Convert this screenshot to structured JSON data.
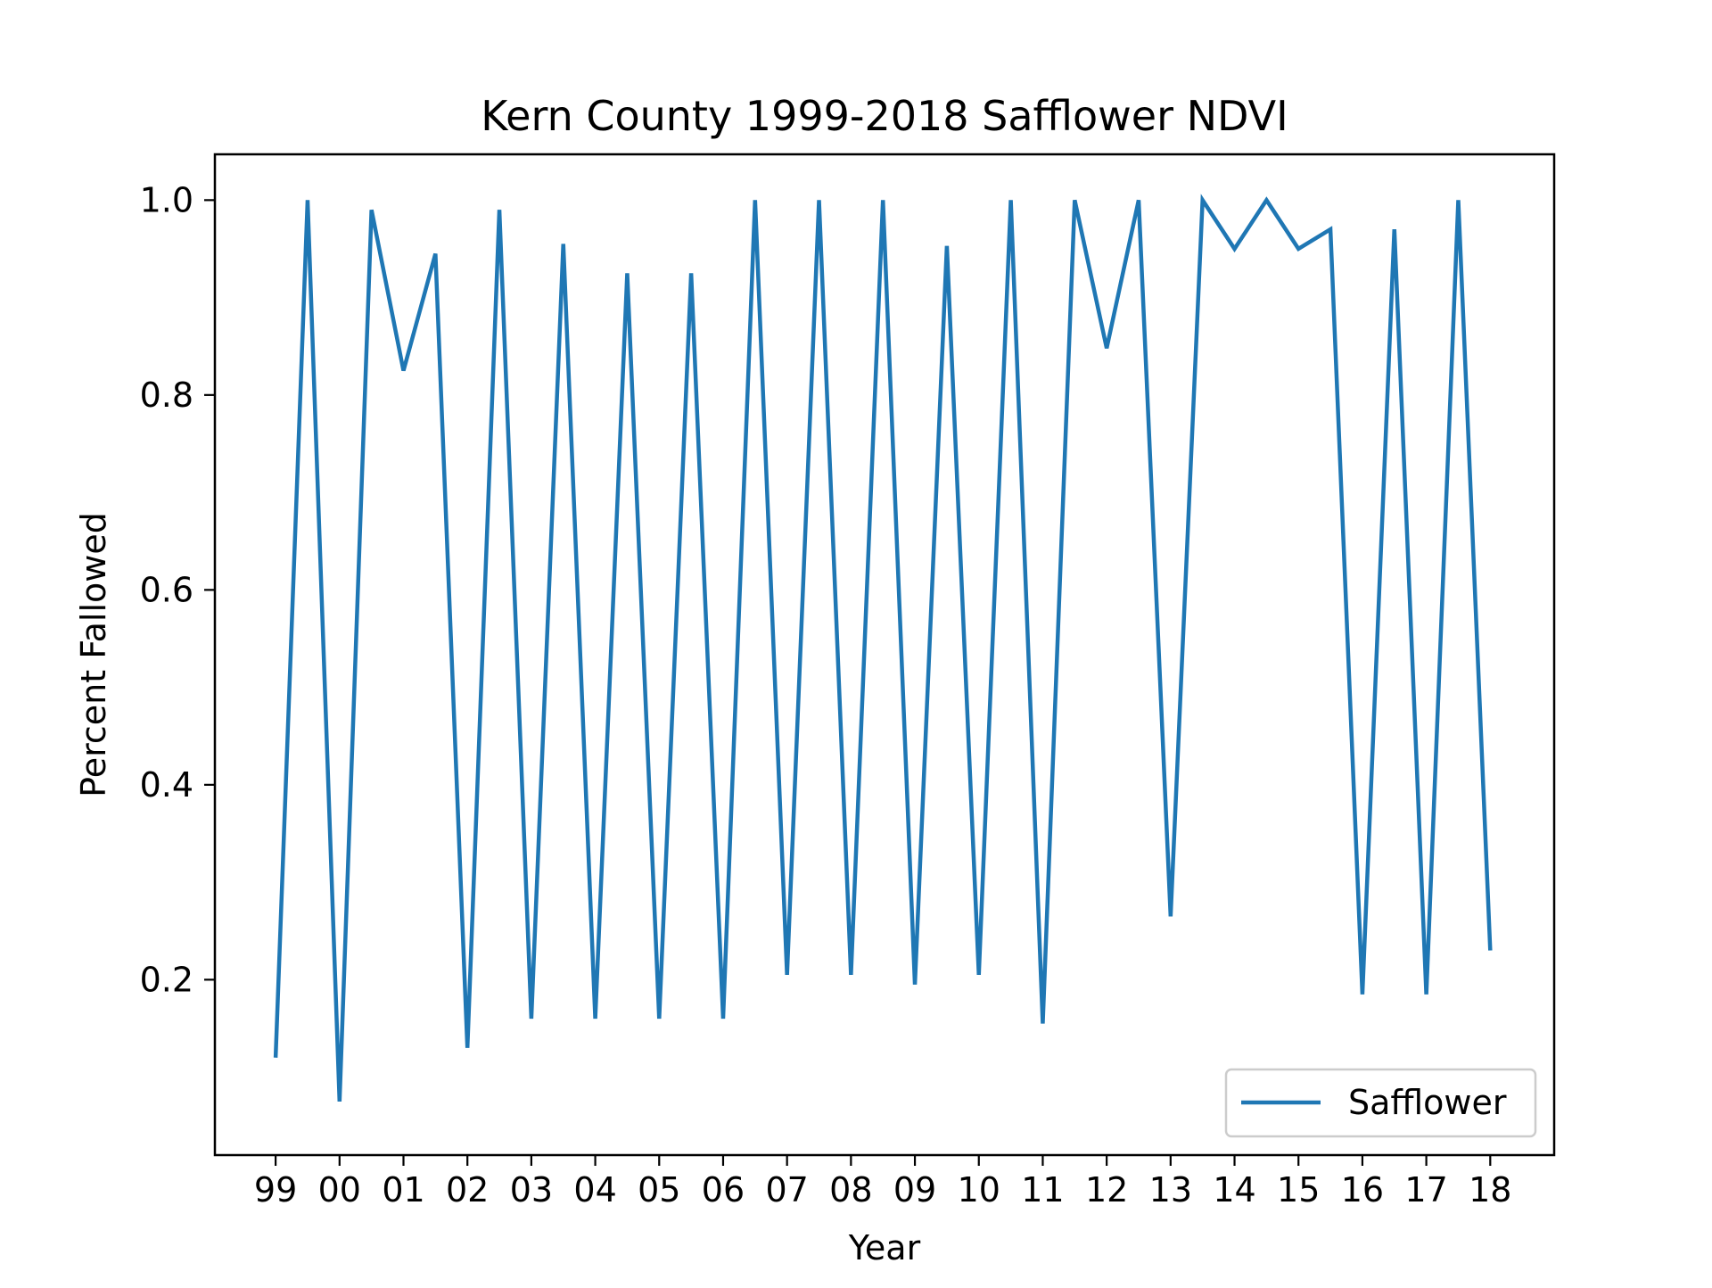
{
  "chart_data": {
    "type": "line",
    "title": "Kern County 1999-2018 Safflower NDVI",
    "xlabel": "Year",
    "ylabel": "Percent Fallowed",
    "x_tick_labels": [
      "99",
      "00",
      "01",
      "02",
      "03",
      "04",
      "05",
      "06",
      "07",
      "08",
      "09",
      "10",
      "11",
      "12",
      "13",
      "14",
      "15",
      "16",
      "17",
      "18"
    ],
    "x_tick_positions": [
      0,
      2,
      4,
      6,
      8,
      10,
      12,
      14,
      16,
      18,
      20,
      22,
      24,
      26,
      28,
      30,
      32,
      34,
      36,
      38
    ],
    "xlim": [
      -1.9,
      40.0
    ],
    "y_ticks": [
      0.2,
      0.4,
      0.6,
      0.8,
      1.0
    ],
    "y_tick_labels": [
      "0.2",
      "0.4",
      "0.6",
      "0.8",
      "1.0"
    ],
    "ylim": [
      0.02,
      1.047
    ],
    "grid": false,
    "legend_position": "lower-right",
    "series": [
      {
        "name": "Safflower",
        "color": "#1f77b4",
        "x": [
          0,
          1,
          2,
          3,
          4,
          5,
          6,
          7,
          8,
          9,
          10,
          11,
          12,
          13,
          14,
          15,
          16,
          17,
          18,
          19,
          20,
          21,
          22,
          23,
          24,
          25,
          26,
          27,
          28,
          29,
          30,
          31,
          32,
          33,
          34,
          35,
          36,
          37,
          38
        ],
        "values": [
          0.12,
          1.0,
          0.075,
          0.99,
          0.825,
          0.945,
          0.13,
          0.99,
          0.16,
          0.955,
          0.16,
          0.925,
          0.16,
          0.925,
          0.16,
          1.0,
          0.205,
          1.0,
          0.205,
          1.0,
          0.195,
          0.953,
          0.205,
          1.0,
          0.155,
          1.0,
          0.848,
          1.0,
          0.265,
          1.0,
          0.95,
          1.0,
          0.95,
          0.97,
          0.185,
          0.97,
          0.185,
          1.0,
          0.23
        ]
      }
    ]
  }
}
